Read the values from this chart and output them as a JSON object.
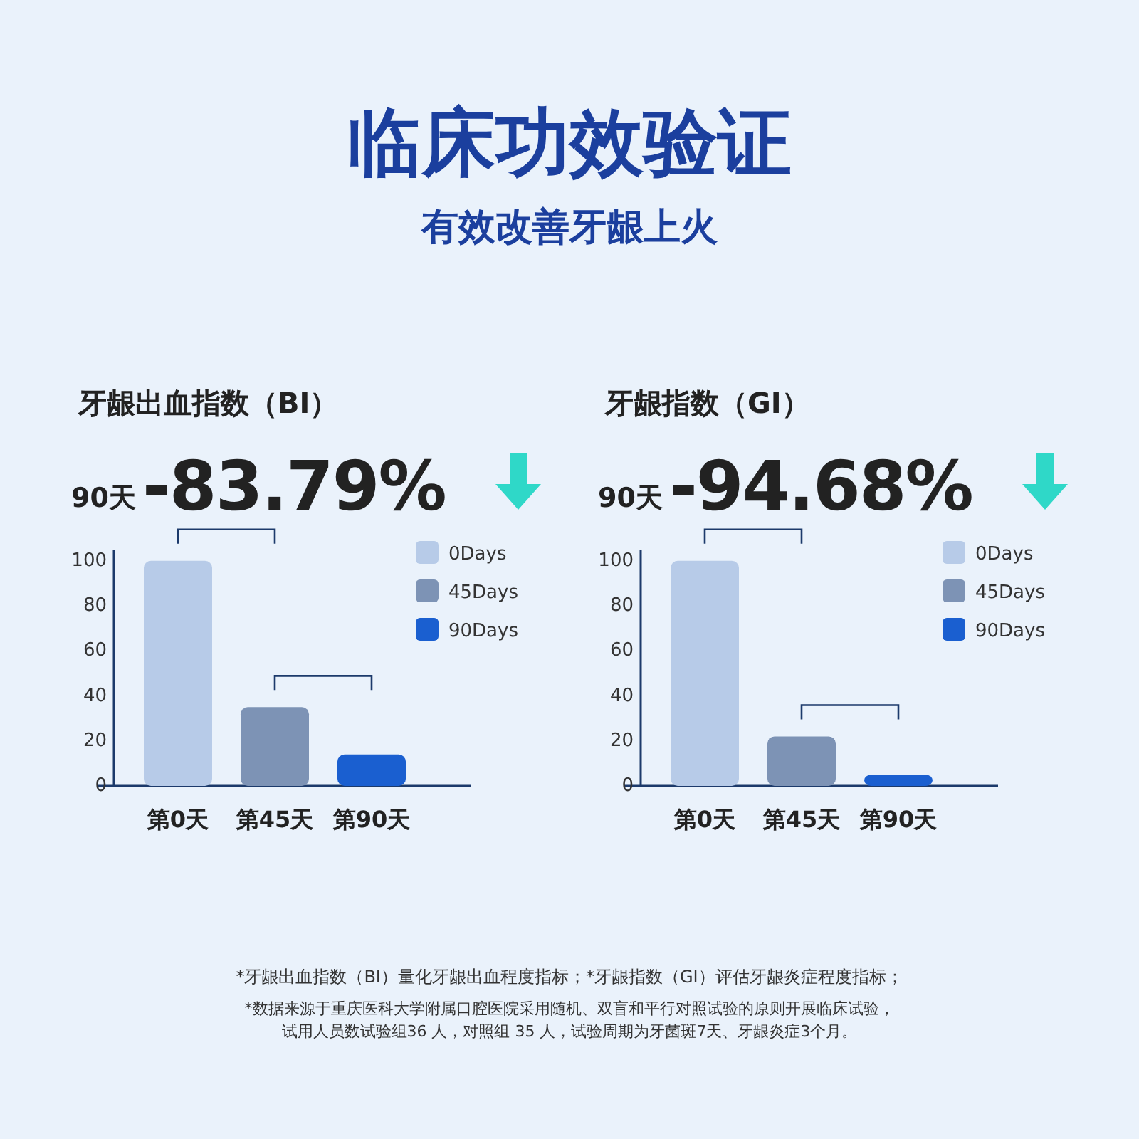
{
  "chart_data": [
    {
      "type": "other",
      "title": "临床功效验证",
      "subtitle": "有效改善牙龈上火",
      "annotations": [
        "*牙龈出血指数（BI）量化牙龈出血程度指标；*牙龈指数（GI）评估牙龈炎症程度指标；",
        "*数据来源于重庆医科大学附属口腔医院采用随机、双盲和平行对照试验的原则开展临床试验，",
        "试用人员数试验组36 人，对照组 35 人，试验周期为牙菌斑7天、牙龈炎症3个月。"
      ]
    },
    {
      "type": "bar",
      "title": "牙龈出血指数（BI）",
      "annotations": [
        "90天",
        "-83.79%"
      ],
      "categories": [
        "第0天",
        "第45天",
        "第90天"
      ],
      "series": [
        {
          "name": "0Days",
          "color": "#b7cbe8",
          "values": [
            100,
            null,
            null
          ]
        },
        {
          "name": "45Days",
          "color": "#7d93b5",
          "values": [
            null,
            35,
            null
          ]
        },
        {
          "name": "90Days",
          "color": "#1a5fd0",
          "values": [
            null,
            null,
            14
          ]
        }
      ],
      "ylim": [
        0,
        105
      ],
      "yticks": [
        0,
        20,
        40,
        60,
        80,
        100
      ],
      "legend": "top right"
    },
    {
      "type": "bar",
      "title": "牙龈指数（GI）",
      "annotations": [
        "90天",
        "-94.68%"
      ],
      "categories": [
        "第0天",
        "第45天",
        "第90天"
      ],
      "series": [
        {
          "name": "0Days",
          "color": "#b7cbe8",
          "values": [
            100,
            null,
            null
          ]
        },
        {
          "name": "45Days",
          "color": "#7d93b5",
          "values": [
            null,
            22,
            null
          ]
        },
        {
          "name": "90Days",
          "color": "#1a5fd0",
          "values": [
            null,
            null,
            5
          ]
        }
      ],
      "ylim": [
        0,
        105
      ],
      "yticks": [
        0,
        20,
        40,
        60,
        80,
        100
      ],
      "legend": "top right"
    }
  ]
}
